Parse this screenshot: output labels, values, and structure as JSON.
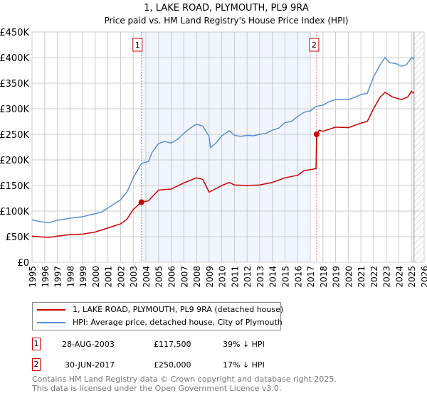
{
  "chart_data": {
    "type": "line",
    "title": "1, LAKE ROAD, PLYMOUTH, PL9 9RA",
    "subtitle": "Price paid vs. HM Land Registry's House Price Index (HPI)",
    "xlim": [
      1995,
      2026
    ],
    "ylim": [
      0,
      450000
    ],
    "y_ticks": [
      {
        "v": 0,
        "label": "£0"
      },
      {
        "v": 50000,
        "label": "£50K"
      },
      {
        "v": 100000,
        "label": "£100K"
      },
      {
        "v": 150000,
        "label": "£150K"
      },
      {
        "v": 200000,
        "label": "£200K"
      },
      {
        "v": 250000,
        "label": "£250K"
      },
      {
        "v": 300000,
        "label": "£300K"
      },
      {
        "v": 350000,
        "label": "£350K"
      },
      {
        "v": 400000,
        "label": "£400K"
      },
      {
        "v": 450000,
        "label": "£450K"
      }
    ],
    "x_ticks": [
      "1995",
      "1996",
      "1997",
      "1998",
      "1999",
      "2000",
      "2001",
      "2002",
      "2003",
      "2004",
      "2005",
      "2006",
      "2007",
      "2008",
      "2009",
      "2010",
      "2011",
      "2012",
      "2013",
      "2014",
      "2015",
      "2016",
      "2017",
      "2018",
      "2019",
      "2020",
      "2021",
      "2022",
      "2023",
      "2024",
      "2025",
      "2026"
    ],
    "grid": true,
    "shaded_range": [
      2003.65,
      2017.0
    ],
    "hatched_from": 2025.2,
    "series": [
      {
        "name": "1, LAKE ROAD, PLYMOUTH, PL9 9RA (detached house)",
        "color": "#cc0000",
        "points": [
          [
            1995,
            51
          ],
          [
            1996,
            49
          ],
          [
            1996.5,
            49
          ],
          [
            1997,
            51
          ],
          [
            1998,
            54
          ],
          [
            1999,
            55
          ],
          [
            2000,
            59
          ],
          [
            2001,
            67
          ],
          [
            2002,
            75
          ],
          [
            2002.5,
            84
          ],
          [
            2003,
            103
          ],
          [
            2003.65,
            117.5
          ],
          [
            2004.2,
            120
          ],
          [
            2005,
            141
          ],
          [
            2006,
            143
          ],
          [
            2007,
            155
          ],
          [
            2008,
            165
          ],
          [
            2008.5,
            162
          ],
          [
            2009,
            137
          ],
          [
            2010,
            150
          ],
          [
            2010.6,
            156
          ],
          [
            2011,
            151
          ],
          [
            2012,
            150
          ],
          [
            2013,
            151
          ],
          [
            2014,
            156
          ],
          [
            2015,
            165
          ],
          [
            2016,
            170
          ],
          [
            2016.5,
            179
          ],
          [
            2017,
            181
          ],
          [
            2017.45,
            183
          ],
          [
            2017.5,
            250
          ],
          [
            2017.7,
            258
          ],
          [
            2018,
            256
          ],
          [
            2019,
            264
          ],
          [
            2020,
            263
          ],
          [
            2021,
            272
          ],
          [
            2021.5,
            275
          ],
          [
            2022,
            300
          ],
          [
            2022.5,
            322
          ],
          [
            2022.9,
            332
          ],
          [
            2023.5,
            323
          ],
          [
            2024.2,
            318
          ],
          [
            2024.7,
            323
          ],
          [
            2025,
            334
          ],
          [
            2025.2,
            330
          ]
        ]
      },
      {
        "name": "HPI: Average price, detached house, City of Plymouth",
        "color": "#5b8fd4",
        "points": [
          [
            1995,
            83
          ],
          [
            1995.5,
            80
          ],
          [
            1996.3,
            77
          ],
          [
            1997,
            82
          ],
          [
            1998,
            86
          ],
          [
            1999,
            89
          ],
          [
            2000,
            95
          ],
          [
            2000.5,
            98
          ],
          [
            2001,
            106
          ],
          [
            2001.5,
            114
          ],
          [
            2002,
            122
          ],
          [
            2002.5,
            137
          ],
          [
            2003,
            165
          ],
          [
            2003.65,
            193
          ],
          [
            2004.2,
            197
          ],
          [
            2004.5,
            215
          ],
          [
            2005,
            232
          ],
          [
            2005.5,
            236
          ],
          [
            2006,
            233
          ],
          [
            2006.5,
            240
          ],
          [
            2007,
            252
          ],
          [
            2007.5,
            262
          ],
          [
            2008,
            270
          ],
          [
            2008.5,
            266
          ],
          [
            2009,
            246
          ],
          [
            2009.1,
            224
          ],
          [
            2009.5,
            232
          ],
          [
            2010,
            247
          ],
          [
            2010.6,
            257
          ],
          [
            2011,
            248
          ],
          [
            2011.5,
            246
          ],
          [
            2012,
            248
          ],
          [
            2012.5,
            247
          ],
          [
            2013,
            250
          ],
          [
            2013.5,
            252
          ],
          [
            2014,
            258
          ],
          [
            2014.5,
            262
          ],
          [
            2015,
            273
          ],
          [
            2015.5,
            275
          ],
          [
            2016,
            285
          ],
          [
            2016.5,
            293
          ],
          [
            2017,
            296
          ],
          [
            2017.5,
            305
          ],
          [
            2018,
            307
          ],
          [
            2018.5,
            314
          ],
          [
            2019,
            318
          ],
          [
            2019.5,
            318
          ],
          [
            2020,
            318
          ],
          [
            2020.5,
            322
          ],
          [
            2021,
            328
          ],
          [
            2021.5,
            330
          ],
          [
            2022,
            362
          ],
          [
            2022.5,
            385
          ],
          [
            2022.9,
            400
          ],
          [
            2023.3,
            390
          ],
          [
            2023.8,
            388
          ],
          [
            2024.2,
            383
          ],
          [
            2024.6,
            386
          ],
          [
            2025,
            400
          ],
          [
            2025.2,
            396
          ]
        ]
      }
    ],
    "sales": [
      {
        "id": "1",
        "year": 2003.65,
        "value": 117.5,
        "date": "28-AUG-2003",
        "price": "£117,500",
        "hpi": "39% ↓ HPI"
      },
      {
        "id": "2",
        "year": 2017.5,
        "value": 250,
        "date": "30-JUN-2017",
        "price": "£250,000",
        "hpi": "17% ↓ HPI"
      }
    ]
  },
  "legend": {
    "red": "1, LAKE ROAD, PLYMOUTH, PL9 9RA (detached house)",
    "blue": "HPI: Average price, detached house, City of Plymouth"
  },
  "footer": {
    "line1": "Contains HM Land Registry data © Crown copyright and database right 2025.",
    "line2": "This data is licensed under the Open Government Licence v3.0."
  }
}
